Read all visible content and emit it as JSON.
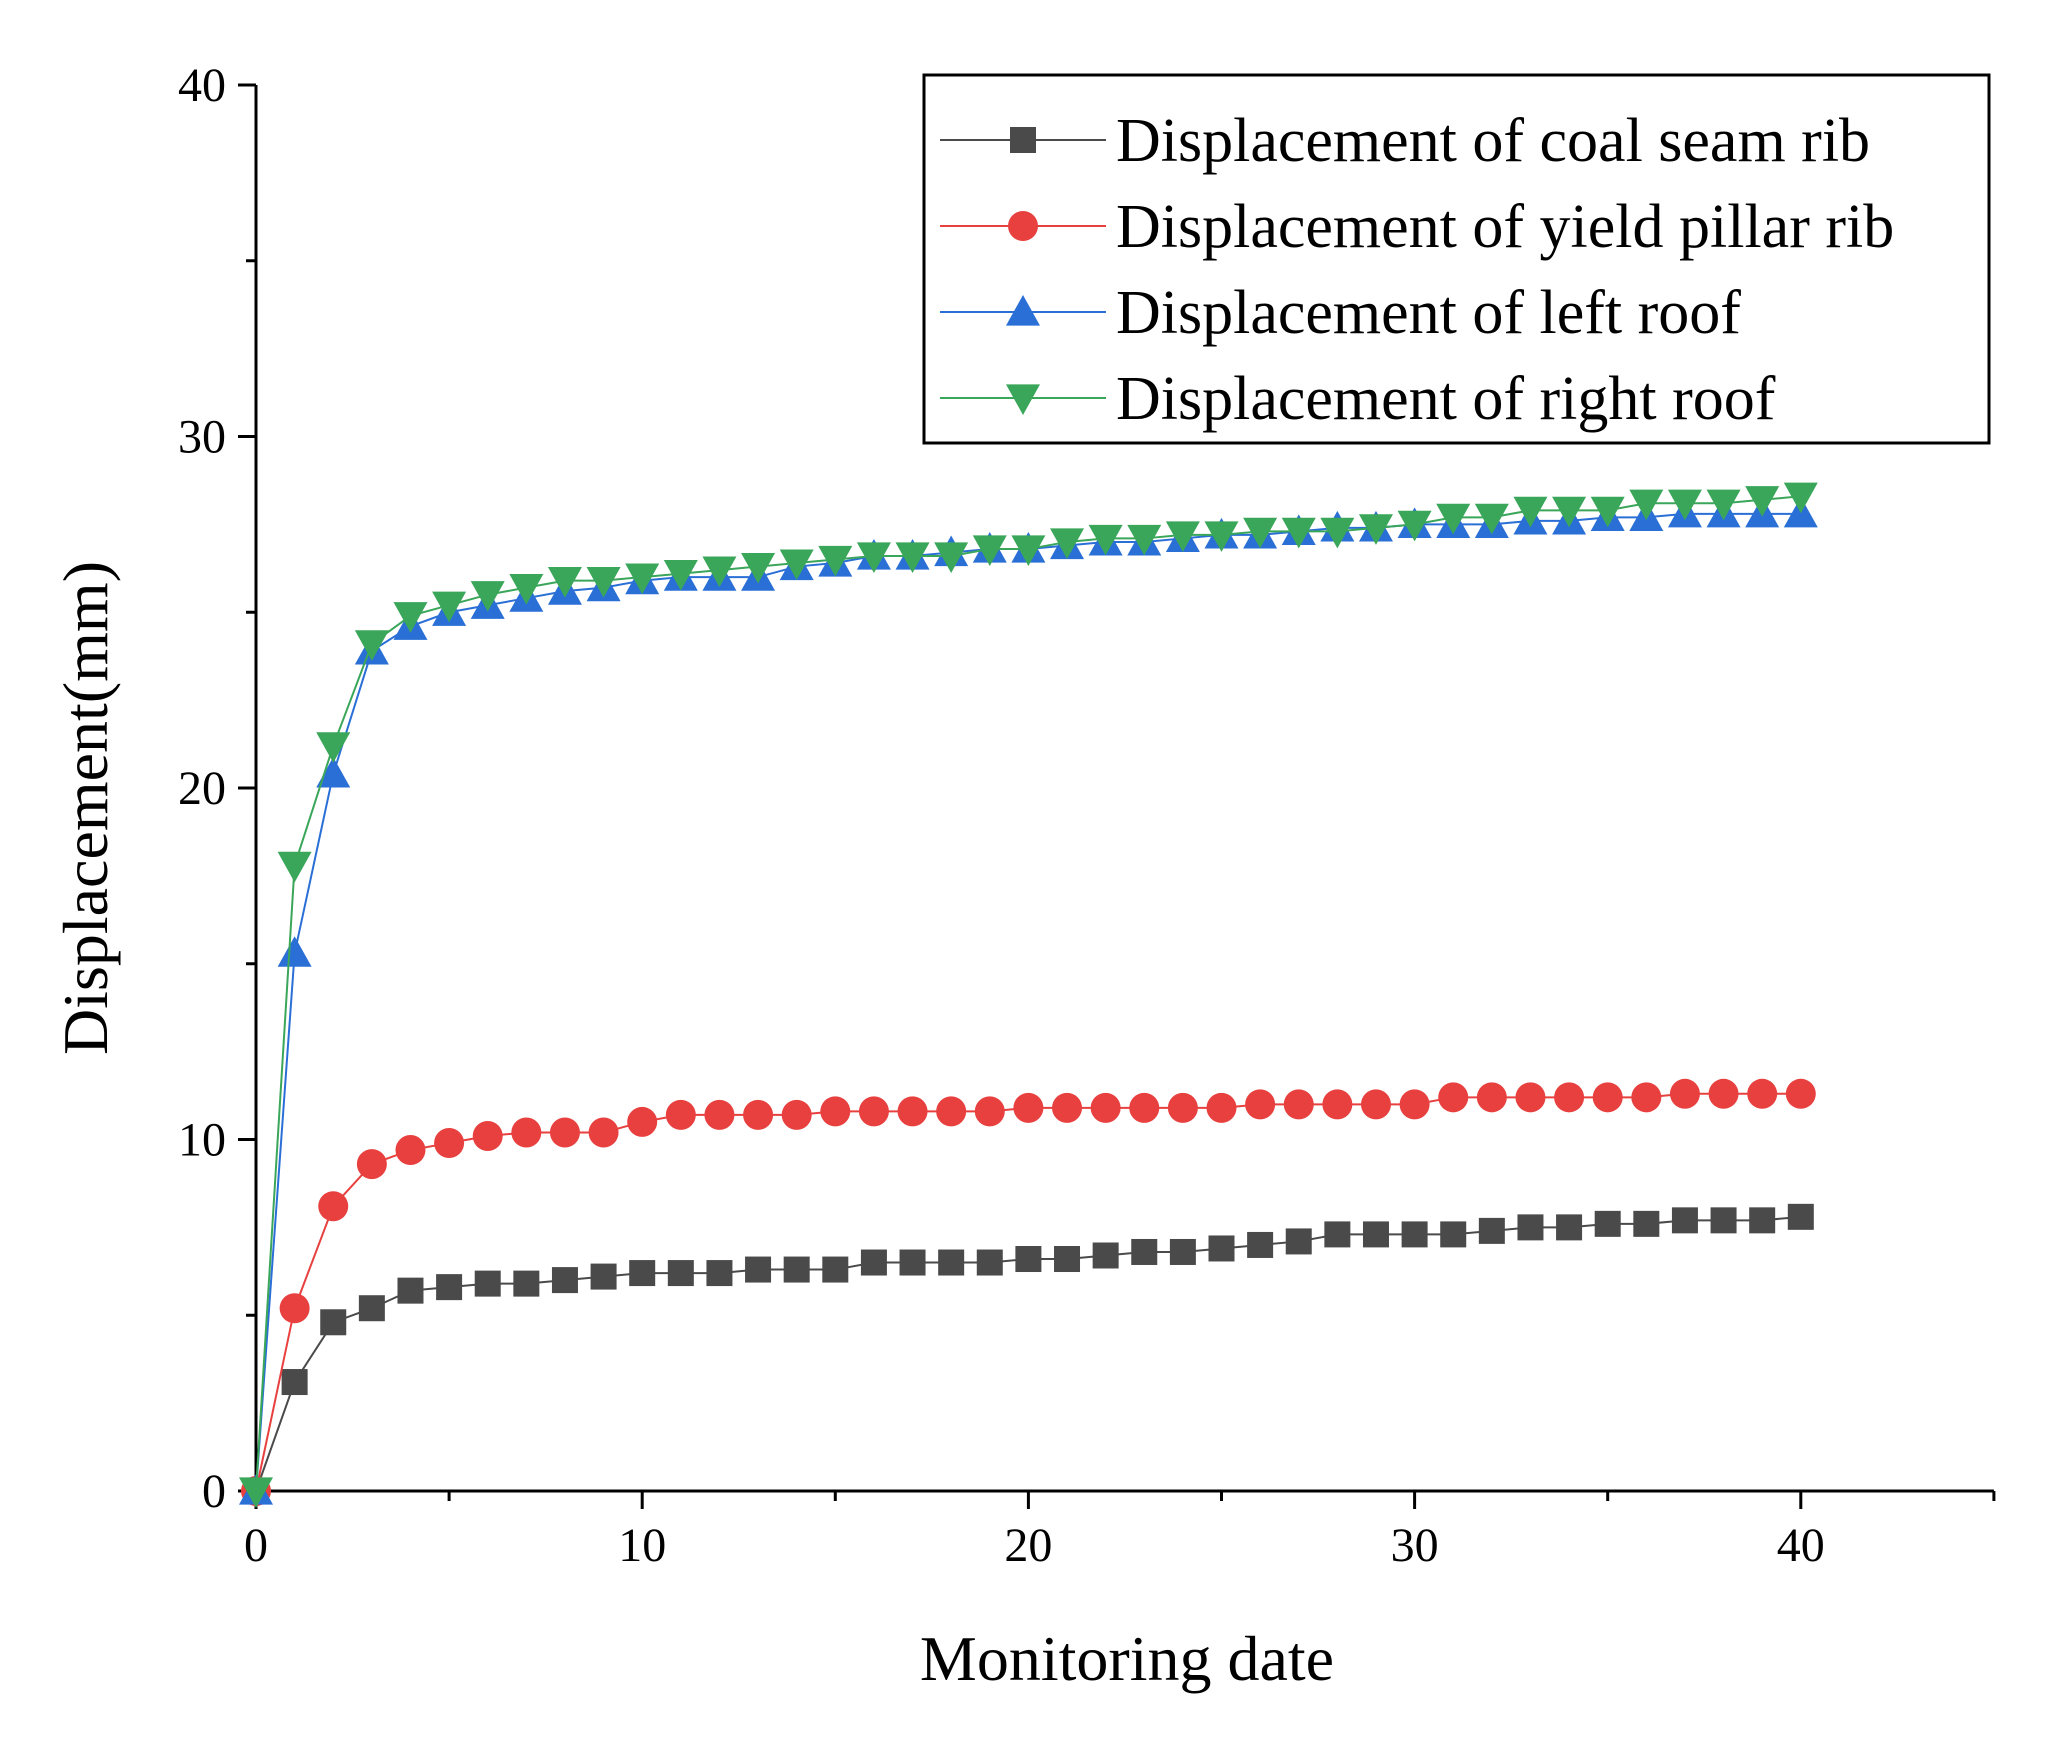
{
  "chart_data": {
    "type": "line",
    "title": "",
    "xlabel": "Monitoring date",
    "ylabel": "Displacement(mm)",
    "xlim": [
      0,
      45
    ],
    "ylim": [
      0,
      40
    ],
    "xticks": [
      0,
      10,
      20,
      30,
      40
    ],
    "yticks": [
      0,
      10,
      20,
      30,
      40
    ],
    "legend_position": "top-right",
    "x": [
      0,
      1,
      2,
      3,
      4,
      5,
      6,
      7,
      8,
      9,
      10,
      11,
      12,
      13,
      14,
      15,
      16,
      17,
      18,
      19,
      20,
      21,
      22,
      23,
      24,
      25,
      26,
      27,
      28,
      29,
      30,
      31,
      32,
      33,
      34,
      35,
      36,
      37,
      38,
      39,
      40
    ],
    "series": [
      {
        "name": "Displacement of coal seam rib",
        "color": "#4a4a4a",
        "marker": "square",
        "values": [
          0,
          3.1,
          4.8,
          5.2,
          5.7,
          5.8,
          5.9,
          5.9,
          6.0,
          6.1,
          6.2,
          6.2,
          6.2,
          6.3,
          6.3,
          6.3,
          6.5,
          6.5,
          6.5,
          6.5,
          6.6,
          6.6,
          6.7,
          6.8,
          6.8,
          6.9,
          7.0,
          7.1,
          7.3,
          7.3,
          7.3,
          7.3,
          7.4,
          7.5,
          7.5,
          7.6,
          7.6,
          7.7,
          7.7,
          7.7,
          7.8
        ]
      },
      {
        "name": "Displacement of yield pillar rib",
        "color": "#e8403f",
        "marker": "circle",
        "values": [
          0,
          5.2,
          8.1,
          9.3,
          9.7,
          9.9,
          10.1,
          10.2,
          10.2,
          10.2,
          10.5,
          10.7,
          10.7,
          10.7,
          10.7,
          10.8,
          10.8,
          10.8,
          10.8,
          10.8,
          10.9,
          10.9,
          10.9,
          10.9,
          10.9,
          10.9,
          11.0,
          11.0,
          11.0,
          11.0,
          11.0,
          11.2,
          11.2,
          11.2,
          11.2,
          11.2,
          11.2,
          11.3,
          11.3,
          11.3,
          11.3
        ]
      },
      {
        "name": "Displacement of left roof",
        "color": "#2a6fd6",
        "marker": "triangle-up",
        "values": [
          0,
          15.3,
          20.4,
          23.9,
          24.6,
          25.0,
          25.2,
          25.4,
          25.6,
          25.7,
          25.9,
          26.0,
          26.0,
          26.0,
          26.3,
          26.4,
          26.6,
          26.6,
          26.7,
          26.8,
          26.8,
          26.9,
          27.0,
          27.0,
          27.1,
          27.2,
          27.2,
          27.3,
          27.4,
          27.4,
          27.5,
          27.5,
          27.5,
          27.6,
          27.6,
          27.7,
          27.7,
          27.8,
          27.8,
          27.8,
          27.8
        ]
      },
      {
        "name": "Displacement of right roof",
        "color": "#3aa65a",
        "marker": "triangle-down",
        "values": [
          0,
          17.8,
          21.2,
          24.1,
          24.9,
          25.2,
          25.5,
          25.7,
          25.9,
          25.9,
          26.0,
          26.1,
          26.2,
          26.3,
          26.4,
          26.5,
          26.6,
          26.6,
          26.6,
          26.8,
          26.8,
          27.0,
          27.1,
          27.1,
          27.2,
          27.2,
          27.3,
          27.3,
          27.3,
          27.4,
          27.5,
          27.7,
          27.7,
          27.9,
          27.9,
          27.9,
          28.1,
          28.1,
          28.1,
          28.2,
          28.3
        ]
      }
    ]
  }
}
